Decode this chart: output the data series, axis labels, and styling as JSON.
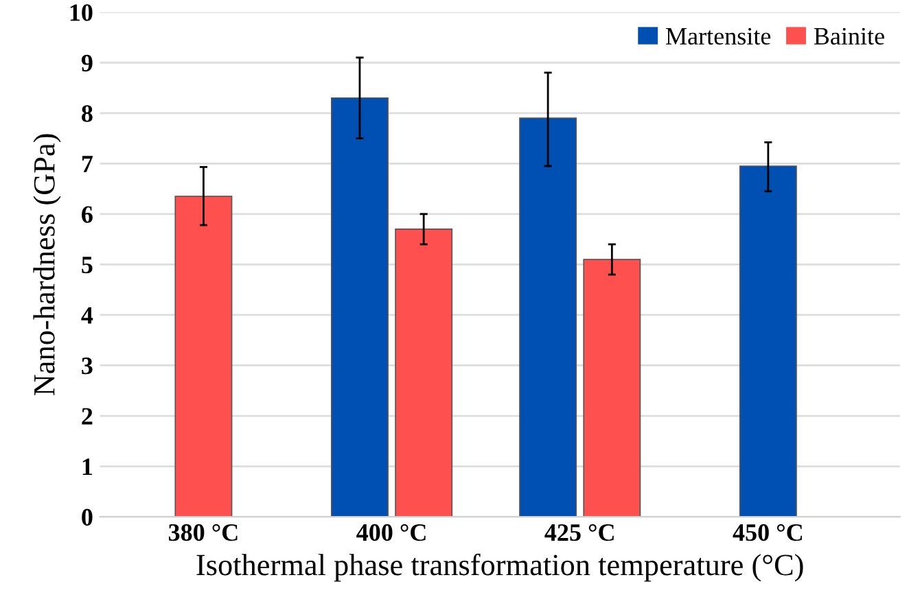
{
  "chart_data": {
    "type": "bar",
    "xlabel": "Isothermal phase transformation temperature (°C)",
    "ylabel": "Nano-hardness (GPa)",
    "categories": [
      "380 °C",
      "400 °C",
      "425 °C",
      "450 °C"
    ],
    "series": [
      {
        "name": "Martensite",
        "color": "#0050b4",
        "values": [
          null,
          8.3,
          7.9,
          6.95
        ],
        "errors": [
          null,
          [
            7.5,
            9.1
          ],
          [
            6.95,
            8.8
          ],
          [
            6.45,
            7.42
          ]
        ]
      },
      {
        "name": "Bainite",
        "color": "#ff5050",
        "values": [
          6.35,
          5.7,
          5.1,
          null
        ],
        "errors": [
          [
            5.78,
            6.93
          ],
          [
            5.4,
            6.0
          ],
          [
            4.8,
            5.4
          ],
          null
        ]
      }
    ],
    "ylim": [
      0,
      10
    ],
    "yticks": [
      0,
      1,
      2,
      3,
      4,
      5,
      6,
      7,
      8,
      9,
      10
    ],
    "grid": "y",
    "legend": "top right"
  }
}
